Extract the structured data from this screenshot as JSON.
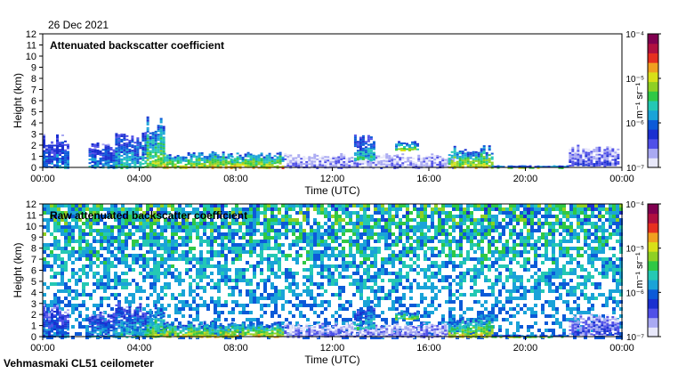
{
  "date": "26 Dec 2021",
  "footer": "Vehmasmaki CL51 ceilometer",
  "colors": {
    "colormap": [
      "#e8e8fa",
      "#a9a9f2",
      "#5050e8",
      "#1a2fd0",
      "#0c5ad8",
      "#1aa3d8",
      "#24c8b4",
      "#2fc845",
      "#8ed024",
      "#d8e018",
      "#f0a020",
      "#e63020",
      "#b01040",
      "#800050"
    ],
    "axis": "#000000"
  },
  "chart_data": [
    {
      "type": "heatmap",
      "title": "Attenuated backscatter coefficient",
      "xlabel": "Time (UTC)",
      "ylabel": "Height (km)",
      "x_ticks": [
        "00:00",
        "04:00",
        "08:00",
        "12:00",
        "16:00",
        "20:00",
        "00:00"
      ],
      "xlim_hours": [
        0,
        24
      ],
      "y_ticks": [
        "0",
        "1",
        "2",
        "3",
        "4",
        "5",
        "6",
        "7",
        "8",
        "9",
        "10",
        "11",
        "12"
      ],
      "ylim_km": [
        0,
        12
      ],
      "colorbar": {
        "label": "m⁻¹ sr⁻¹",
        "ticks": [
          "10⁻⁴",
          "10⁻⁵",
          "10⁻⁶",
          "10⁻⁷"
        ],
        "range_log10": [
          -7,
          -4
        ]
      },
      "regions": [
        {
          "t0": 0.0,
          "t1": 1.1,
          "h0": 0.0,
          "h1": 3.0,
          "intensity": 0.32
        },
        {
          "t0": 1.9,
          "t1": 3.0,
          "h0": 0.0,
          "h1": 2.3,
          "intensity": 0.34
        },
        {
          "t0": 3.0,
          "t1": 4.3,
          "h0": 0.0,
          "h1": 3.2,
          "intensity": 0.4
        },
        {
          "t0": 4.3,
          "t1": 5.0,
          "h0": 0.0,
          "h1": 4.8,
          "intensity": 0.55
        },
        {
          "t0": 5.0,
          "t1": 7.8,
          "h0": 0.0,
          "h1": 1.5,
          "intensity": 0.6
        },
        {
          "t0": 7.8,
          "t1": 10.0,
          "h0": 0.0,
          "h1": 1.4,
          "intensity": 0.62
        },
        {
          "t0": 10.0,
          "t1": 17.0,
          "h0": 0.0,
          "h1": 1.3,
          "intensity": 0.12
        },
        {
          "t0": 12.9,
          "t1": 13.7,
          "h0": 0.7,
          "h1": 3.0,
          "intensity": 0.42
        },
        {
          "t0": 14.6,
          "t1": 15.5,
          "h0": 1.6,
          "h1": 2.4,
          "intensity": 0.55
        },
        {
          "t0": 16.8,
          "t1": 18.6,
          "h0": 0.0,
          "h1": 2.0,
          "intensity": 0.6
        },
        {
          "t0": 18.6,
          "t1": 21.8,
          "h0": 0.0,
          "h1": 0.2,
          "intensity": 0.55
        },
        {
          "t0": 21.8,
          "t1": 23.8,
          "h0": 0.2,
          "h1": 2.1,
          "intensity": 0.18
        }
      ]
    },
    {
      "type": "heatmap",
      "title": "Raw attenuated backscatter coefficient",
      "xlabel": "Time (UTC)",
      "ylabel": "Height (km)",
      "x_ticks": [
        "00:00",
        "04:00",
        "08:00",
        "12:00",
        "16:00",
        "20:00",
        "00:00"
      ],
      "xlim_hours": [
        0,
        24
      ],
      "y_ticks": [
        "0",
        "1",
        "2",
        "3",
        "4",
        "5",
        "6",
        "7",
        "8",
        "9",
        "10",
        "11",
        "12"
      ],
      "ylim_km": [
        0,
        12
      ],
      "colorbar": {
        "label": "m⁻¹ sr⁻¹",
        "ticks": [
          "10⁻⁴",
          "10⁻⁵",
          "10⁻⁶",
          "10⁻⁷"
        ],
        "range_log10": [
          -7,
          -4
        ]
      },
      "background_noise": true,
      "regions": [
        {
          "t0": 0.0,
          "t1": 1.1,
          "h0": 0.0,
          "h1": 3.0,
          "intensity": 0.32
        },
        {
          "t0": 1.9,
          "t1": 3.0,
          "h0": 0.0,
          "h1": 2.3,
          "intensity": 0.34
        },
        {
          "t0": 3.0,
          "t1": 4.3,
          "h0": 0.0,
          "h1": 3.2,
          "intensity": 0.4
        },
        {
          "t0": 4.3,
          "t1": 5.0,
          "h0": 0.0,
          "h1": 3.0,
          "intensity": 0.55
        },
        {
          "t0": 5.0,
          "t1": 7.8,
          "h0": 0.0,
          "h1": 1.5,
          "intensity": 0.6
        },
        {
          "t0": 7.8,
          "t1": 10.0,
          "h0": 0.0,
          "h1": 1.4,
          "intensity": 0.62
        },
        {
          "t0": 10.0,
          "t1": 17.0,
          "h0": 0.0,
          "h1": 1.3,
          "intensity": 0.12
        },
        {
          "t0": 12.9,
          "t1": 13.7,
          "h0": 0.7,
          "h1": 3.0,
          "intensity": 0.42
        },
        {
          "t0": 14.6,
          "t1": 15.5,
          "h0": 1.6,
          "h1": 2.4,
          "intensity": 0.55
        },
        {
          "t0": 16.8,
          "t1": 18.6,
          "h0": 0.0,
          "h1": 2.0,
          "intensity": 0.6
        },
        {
          "t0": 18.6,
          "t1": 21.8,
          "h0": 0.0,
          "h1": 0.2,
          "intensity": 0.55
        },
        {
          "t0": 21.8,
          "t1": 23.8,
          "h0": 0.2,
          "h1": 2.1,
          "intensity": 0.18
        }
      ]
    }
  ]
}
